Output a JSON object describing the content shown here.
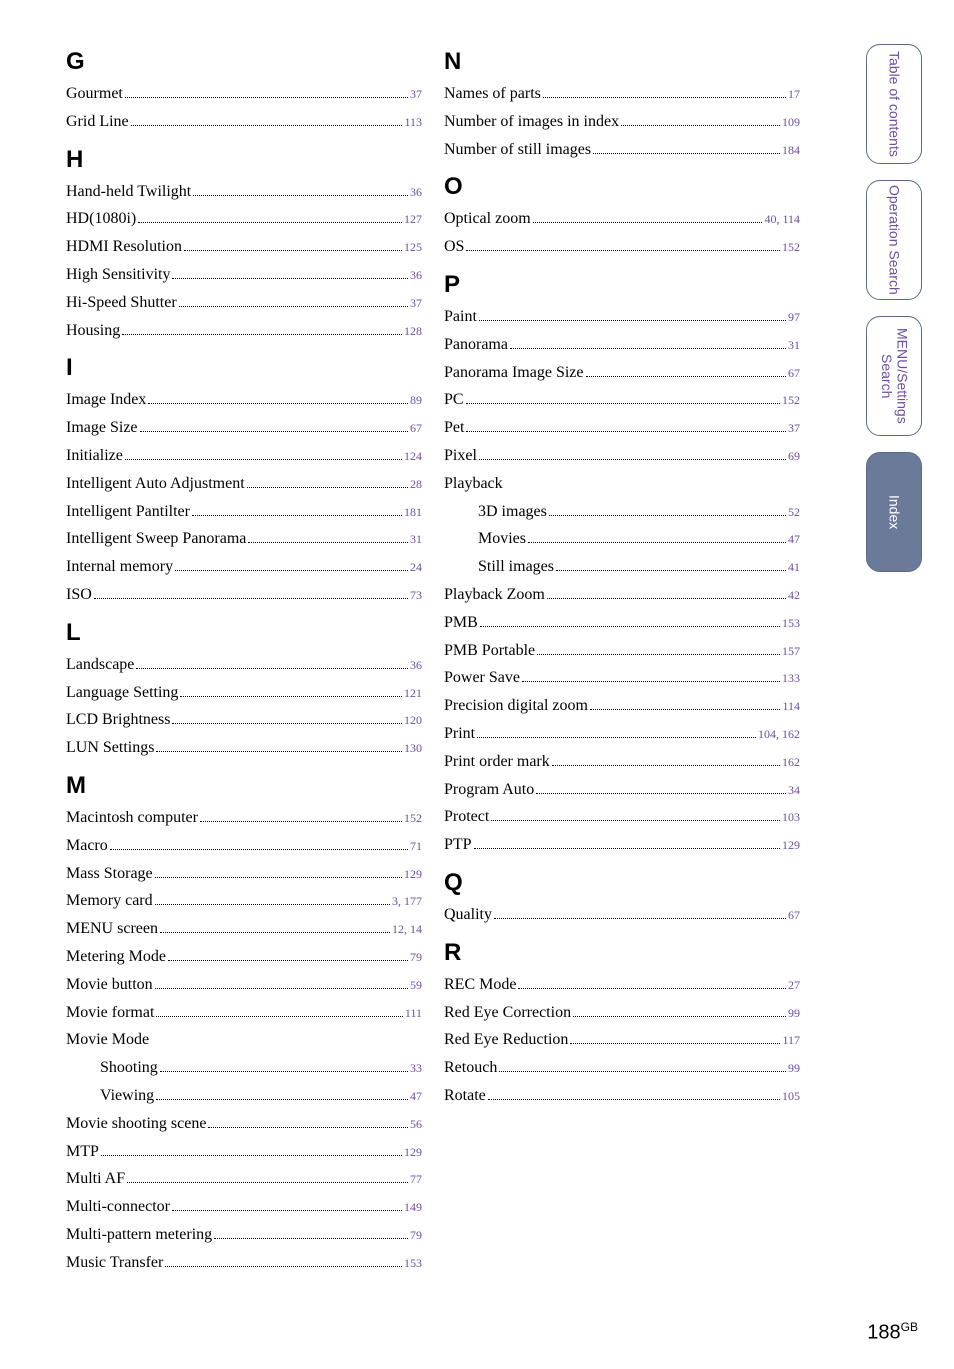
{
  "colors": {
    "link": "#6b4fa0",
    "tab_border": "#5c6b8a",
    "tab_active_bg": "#6c7a99",
    "background": "#ffffff",
    "text": "#000000"
  },
  "page_number": {
    "num": "188",
    "suffix": "GB"
  },
  "tabs": [
    {
      "label": "Table of\ncontents",
      "active": false
    },
    {
      "label": "Operation\nSearch",
      "active": false
    },
    {
      "label": "MENU/Settings\nSearch",
      "active": false
    },
    {
      "label": "Index",
      "active": true
    }
  ],
  "left": [
    {
      "head": "G"
    },
    {
      "label": "Gourmet",
      "page": "37"
    },
    {
      "label": "Grid Line",
      "page": "113"
    },
    {
      "head": "H"
    },
    {
      "label": "Hand-held Twilight",
      "page": "36"
    },
    {
      "label": "HD(1080i)",
      "page": "127"
    },
    {
      "label": "HDMI Resolution",
      "page": "125"
    },
    {
      "label": "High Sensitivity",
      "page": "36"
    },
    {
      "label": "Hi-Speed Shutter",
      "page": "37"
    },
    {
      "label": "Housing",
      "page": "128"
    },
    {
      "head": "I"
    },
    {
      "label": "Image Index",
      "page": "89"
    },
    {
      "label": "Image Size",
      "page": "67"
    },
    {
      "label": "Initialize",
      "page": "124"
    },
    {
      "label": "Intelligent Auto Adjustment",
      "page": "28"
    },
    {
      "label": "Intelligent Pantilter",
      "page": "181"
    },
    {
      "label": "Intelligent Sweep Panorama",
      "page": "31"
    },
    {
      "label": "Internal memory",
      "page": "24"
    },
    {
      "label": "ISO",
      "page": "73"
    },
    {
      "head": "L"
    },
    {
      "label": "Landscape",
      "page": "36"
    },
    {
      "label": "Language Setting",
      "page": "121"
    },
    {
      "label": "LCD Brightness",
      "page": "120"
    },
    {
      "label": "LUN Settings",
      "page": "130"
    },
    {
      "head": "M"
    },
    {
      "label": "Macintosh computer",
      "page": "152"
    },
    {
      "label": "Macro",
      "page": "71"
    },
    {
      "label": "Mass Storage",
      "page": "129"
    },
    {
      "label": "Memory card",
      "page": "3, 177"
    },
    {
      "label": "MENU screen",
      "page": "12, 14"
    },
    {
      "label": "Metering Mode",
      "page": "79"
    },
    {
      "label": "Movie button",
      "page": "59"
    },
    {
      "label": "Movie format",
      "page": "111"
    },
    {
      "plain": "Movie Mode"
    },
    {
      "label": "Shooting",
      "page": "33",
      "sub": true
    },
    {
      "label": "Viewing",
      "page": "47",
      "sub": true
    },
    {
      "label": "Movie shooting scene",
      "page": "56"
    },
    {
      "label": "MTP",
      "page": "129"
    },
    {
      "label": "Multi AF",
      "page": "77"
    },
    {
      "label": "Multi-connector",
      "page": "149"
    },
    {
      "label": "Multi-pattern metering",
      "page": "79"
    },
    {
      "label": "Music Transfer",
      "page": "153"
    }
  ],
  "right": [
    {
      "head": "N"
    },
    {
      "label": "Names of parts",
      "page": "17"
    },
    {
      "label": "Number of images in index",
      "page": "109"
    },
    {
      "label": "Number of still images",
      "page": "184"
    },
    {
      "head": "O"
    },
    {
      "label": "Optical zoom",
      "page": "40, 114"
    },
    {
      "label": "OS",
      "page": "152"
    },
    {
      "head": "P"
    },
    {
      "label": "Paint",
      "page": "97"
    },
    {
      "label": "Panorama",
      "page": "31"
    },
    {
      "label": "Panorama Image Size",
      "page": "67"
    },
    {
      "label": "PC",
      "page": "152"
    },
    {
      "label": "Pet",
      "page": "37"
    },
    {
      "label": "Pixel",
      "page": "69"
    },
    {
      "plain": "Playback"
    },
    {
      "label": "3D images",
      "page": "52",
      "sub": true
    },
    {
      "label": "Movies",
      "page": "47",
      "sub": true
    },
    {
      "label": "Still images",
      "page": "41",
      "sub": true
    },
    {
      "label": "Playback Zoom",
      "page": "42"
    },
    {
      "label": "PMB",
      "page": "153"
    },
    {
      "label": "PMB Portable",
      "page": "157"
    },
    {
      "label": "Power Save",
      "page": "133"
    },
    {
      "label": "Precision digital zoom",
      "page": "114"
    },
    {
      "label": "Print",
      "page": "104, 162"
    },
    {
      "label": "Print order mark",
      "page": "162"
    },
    {
      "label": "Program Auto",
      "page": "34"
    },
    {
      "label": "Protect",
      "page": "103"
    },
    {
      "label": "PTP",
      "page": "129"
    },
    {
      "head": "Q"
    },
    {
      "label": "Quality",
      "page": "67"
    },
    {
      "head": "R"
    },
    {
      "label": "REC Mode",
      "page": "27"
    },
    {
      "label": "Red Eye Correction",
      "page": "99"
    },
    {
      "label": "Red Eye Reduction",
      "page": "117"
    },
    {
      "label": "Retouch",
      "page": "99"
    },
    {
      "label": "Rotate",
      "page": "105"
    }
  ]
}
